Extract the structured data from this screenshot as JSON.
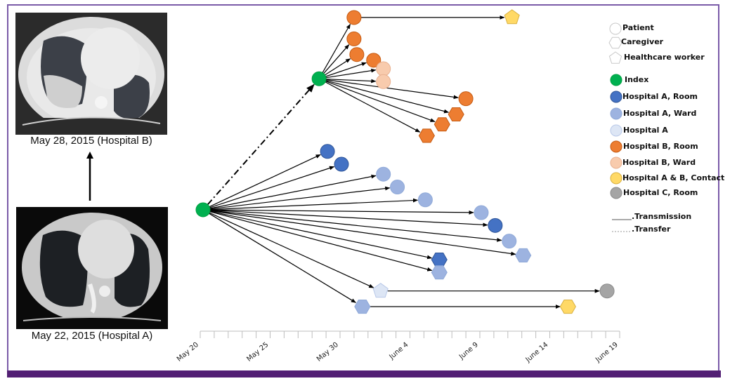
{
  "figure": {
    "images": [
      {
        "id": "ct-hospital-b",
        "caption": "May 28, 2015 (Hospital B)"
      },
      {
        "id": "ct-hospital-a",
        "caption": "May 22, 2015 (Hospital A)"
      }
    ]
  },
  "legend": {
    "shapes": [
      {
        "label": "Patient",
        "shape": "circle"
      },
      {
        "label": "Caregiver",
        "shape": "hexagon"
      },
      {
        "label": "Healthcare worker",
        "shape": "pentagon"
      }
    ],
    "categories": [
      {
        "key": "index",
        "label": "Index",
        "color": "#00b050"
      },
      {
        "key": "a_room",
        "label": "Hospital A, Room",
        "color": "#4472c4"
      },
      {
        "key": "a_ward",
        "label": "Hospital A, Ward",
        "color": "#9db3e0"
      },
      {
        "key": "a",
        "label": "Hospital A",
        "color": "#dde6f5"
      },
      {
        "key": "b_room",
        "label": "Hospital B, Room",
        "color": "#ed7d31"
      },
      {
        "key": "b_ward",
        "label": "Hospital B, Ward",
        "color": "#f8cbad"
      },
      {
        "key": "ab_contact",
        "label": "Hospital A & B, Contact",
        "color": "#ffd966"
      },
      {
        "key": "c_room",
        "label": "Hospital C, Room",
        "color": "#a5a5a5"
      }
    ],
    "lines": [
      {
        "label": ".Transmission",
        "style": "solid"
      },
      {
        "label": ".Transfer",
        "style": "dotted"
      }
    ]
  },
  "axis": {
    "start_date": "May 20",
    "tick_labels": [
      "May 20",
      "May 25",
      "May 30",
      "June 4",
      "June 9",
      "June 14",
      "June 19"
    ],
    "days_span": 30
  },
  "nodes": [
    {
      "id": "idx1",
      "day": 0.2,
      "row": 0.0,
      "shape": "circle",
      "cat": "index"
    },
    {
      "id": "idx2",
      "day": 8.5,
      "row": -9.2,
      "shape": "circle",
      "cat": "index"
    },
    {
      "id": "b1",
      "day": 11.0,
      "row": -13.5,
      "shape": "circle",
      "cat": "b_room"
    },
    {
      "id": "b2",
      "day": 11.0,
      "row": -12.0,
      "shape": "circle",
      "cat": "b_room"
    },
    {
      "id": "b3",
      "day": 11.2,
      "row": -10.9,
      "shape": "circle",
      "cat": "b_room"
    },
    {
      "id": "b4",
      "day": 12.4,
      "row": -10.5,
      "shape": "circle",
      "cat": "b_room"
    },
    {
      "id": "bw1",
      "day": 13.1,
      "row": -9.9,
      "shape": "circle",
      "cat": "b_ward"
    },
    {
      "id": "bw2",
      "day": 13.1,
      "row": -9.0,
      "shape": "circle",
      "cat": "b_ward"
    },
    {
      "id": "b5",
      "day": 19.0,
      "row": -7.8,
      "shape": "circle",
      "cat": "b_room"
    },
    {
      "id": "b6",
      "day": 18.3,
      "row": -6.7,
      "shape": "hexagon",
      "cat": "b_room"
    },
    {
      "id": "b7",
      "day": 17.3,
      "row": -6.0,
      "shape": "hexagon",
      "cat": "b_room"
    },
    {
      "id": "b8",
      "day": 16.2,
      "row": -5.2,
      "shape": "hexagon",
      "cat": "b_room"
    },
    {
      "id": "abc1",
      "day": 22.3,
      "row": -13.5,
      "shape": "pentagon",
      "cat": "ab_contact"
    },
    {
      "id": "a1",
      "day": 9.1,
      "row": -4.1,
      "shape": "circle",
      "cat": "a_room"
    },
    {
      "id": "a2",
      "day": 10.1,
      "row": -3.2,
      "shape": "circle",
      "cat": "a_room"
    },
    {
      "id": "aw1",
      "day": 13.1,
      "row": -2.5,
      "shape": "circle",
      "cat": "a_ward"
    },
    {
      "id": "aw2",
      "day": 14.1,
      "row": -1.6,
      "shape": "circle",
      "cat": "a_ward"
    },
    {
      "id": "aw3",
      "day": 16.1,
      "row": -0.7,
      "shape": "circle",
      "cat": "a_ward"
    },
    {
      "id": "aw4",
      "day": 20.1,
      "row": 0.2,
      "shape": "circle",
      "cat": "a_ward"
    },
    {
      "id": "a3",
      "day": 21.1,
      "row": 1.1,
      "shape": "circle",
      "cat": "a_room"
    },
    {
      "id": "aw5",
      "day": 22.1,
      "row": 2.2,
      "shape": "circle",
      "cat": "a_ward"
    },
    {
      "id": "aw6",
      "day": 23.1,
      "row": 3.2,
      "shape": "hexagon",
      "cat": "a_ward"
    },
    {
      "id": "a4",
      "day": 17.1,
      "row": 3.5,
      "shape": "hexagon",
      "cat": "a_room"
    },
    {
      "id": "aw7",
      "day": 17.1,
      "row": 4.4,
      "shape": "hexagon",
      "cat": "a_ward"
    },
    {
      "id": "ha1",
      "day": 12.9,
      "row": 5.7,
      "shape": "pentagon",
      "cat": "a"
    },
    {
      "id": "aw8",
      "day": 11.6,
      "row": 6.8,
      "shape": "hexagon",
      "cat": "a_ward"
    },
    {
      "id": "c1",
      "day": 29.1,
      "row": 5.7,
      "shape": "circle",
      "cat": "c_room"
    },
    {
      "id": "abc2",
      "day": 26.3,
      "row": 6.8,
      "shape": "hexagon",
      "cat": "ab_contact"
    }
  ],
  "edges": [
    {
      "from": "idx1",
      "to": "idx2",
      "style": "dashdot"
    },
    {
      "from": "idx2",
      "to": "b1"
    },
    {
      "from": "idx2",
      "to": "b2"
    },
    {
      "from": "idx2",
      "to": "b3"
    },
    {
      "from": "idx2",
      "to": "b4"
    },
    {
      "from": "idx2",
      "to": "bw1"
    },
    {
      "from": "idx2",
      "to": "bw2"
    },
    {
      "from": "idx2",
      "to": "b5"
    },
    {
      "from": "idx2",
      "to": "b6"
    },
    {
      "from": "idx2",
      "to": "b7"
    },
    {
      "from": "idx2",
      "to": "b8"
    },
    {
      "from": "b1",
      "to": "abc1"
    },
    {
      "from": "idx1",
      "to": "a1"
    },
    {
      "from": "idx1",
      "to": "a2"
    },
    {
      "from": "idx1",
      "to": "aw1"
    },
    {
      "from": "idx1",
      "to": "aw2"
    },
    {
      "from": "idx1",
      "to": "aw3"
    },
    {
      "from": "idx1",
      "to": "aw4"
    },
    {
      "from": "idx1",
      "to": "a3"
    },
    {
      "from": "idx1",
      "to": "aw5"
    },
    {
      "from": "idx1",
      "to": "aw6"
    },
    {
      "from": "idx1",
      "to": "a4"
    },
    {
      "from": "idx1",
      "to": "aw7"
    },
    {
      "from": "idx1",
      "to": "ha1"
    },
    {
      "from": "idx1",
      "to": "aw8"
    },
    {
      "from": "ha1",
      "to": "c1"
    },
    {
      "from": "aw8",
      "to": "abc2"
    }
  ]
}
